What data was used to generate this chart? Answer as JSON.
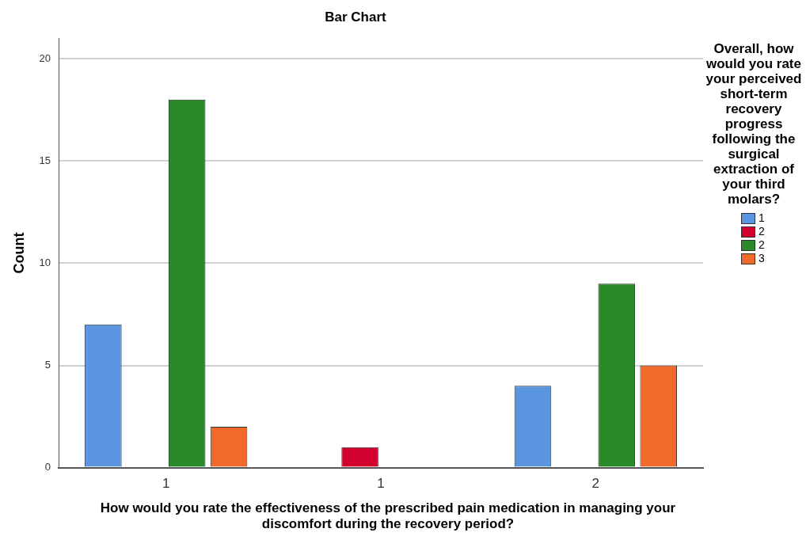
{
  "chart_data": {
    "type": "bar",
    "title": "Bar Chart",
    "xlabel": "How would you rate the effectiveness of the prescribed pain medication in managing your discomfort during the recovery period?",
    "ylabel": "Count",
    "legend_title": "Overall, how would you rate your perceived short-term recovery progress following the surgical extraction of your third molars?",
    "categories": [
      "1",
      "1",
      "2"
    ],
    "series": [
      {
        "name": "1",
        "color": "#5a96e0",
        "values": [
          7,
          null,
          4
        ]
      },
      {
        "name": "2",
        "color": "#d2002e",
        "values": [
          null,
          1,
          null
        ]
      },
      {
        "name": "2",
        "color": "#2a8a2a",
        "values": [
          18,
          null,
          9
        ]
      },
      {
        "name": "3",
        "color": "#f26a2a",
        "values": [
          2,
          null,
          5
        ]
      }
    ],
    "ylim": [
      0,
      21
    ],
    "yticks": [
      0,
      5,
      10,
      15,
      20
    ],
    "grid": "y",
    "legend": "right"
  }
}
